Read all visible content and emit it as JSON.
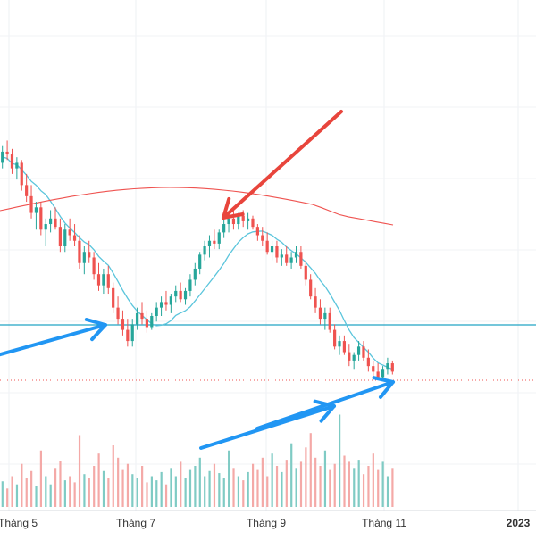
{
  "chart_data": {
    "type": "candlestick",
    "x_axis": {
      "tick_labels": [
        "Tháng 5",
        "Tháng 7",
        "Tháng 9",
        "Tháng 11",
        "2023"
      ]
    },
    "grid": true,
    "price_range": [
      0.0,
      1.0
    ],
    "volume_range": [
      0.0,
      1.0
    ],
    "colors": {
      "up": "#26a69a",
      "down": "#ef5350",
      "volume_up": "#7fcbc4",
      "volume_down": "#f4a9a7",
      "ma_short": "#5bc5dc",
      "ma_long": "#ef5350",
      "support_line": "#22a3c4",
      "last_price_line": "#ef5350",
      "annotation_red": "#e8453c",
      "annotation_blue": "#2196f3"
    },
    "series": [
      {
        "name": "price",
        "candles": [
          [
            0.8,
            0.86,
            0.78,
            0.84
          ],
          [
            0.84,
            0.88,
            0.81,
            0.83
          ],
          [
            0.83,
            0.85,
            0.76,
            0.78
          ],
          [
            0.78,
            0.82,
            0.74,
            0.8
          ],
          [
            0.8,
            0.81,
            0.7,
            0.72
          ],
          [
            0.72,
            0.76,
            0.66,
            0.68
          ],
          [
            0.68,
            0.72,
            0.6,
            0.62
          ],
          [
            0.62,
            0.66,
            0.56,
            0.64
          ],
          [
            0.64,
            0.66,
            0.54,
            0.56
          ],
          [
            0.56,
            0.6,
            0.5,
            0.58
          ],
          [
            0.58,
            0.63,
            0.55,
            0.6
          ],
          [
            0.6,
            0.64,
            0.56,
            0.57
          ],
          [
            0.57,
            0.6,
            0.48,
            0.5
          ],
          [
            0.5,
            0.58,
            0.48,
            0.56
          ],
          [
            0.56,
            0.6,
            0.52,
            0.54
          ],
          [
            0.54,
            0.58,
            0.5,
            0.52
          ],
          [
            0.52,
            0.54,
            0.42,
            0.44
          ],
          [
            0.44,
            0.5,
            0.4,
            0.48
          ],
          [
            0.48,
            0.52,
            0.44,
            0.46
          ],
          [
            0.46,
            0.48,
            0.38,
            0.4
          ],
          [
            0.4,
            0.44,
            0.34,
            0.36
          ],
          [
            0.36,
            0.42,
            0.33,
            0.4
          ],
          [
            0.4,
            0.43,
            0.33,
            0.35
          ],
          [
            0.35,
            0.37,
            0.26,
            0.28
          ],
          [
            0.28,
            0.32,
            0.22,
            0.24
          ],
          [
            0.24,
            0.27,
            0.18,
            0.2
          ],
          [
            0.2,
            0.24,
            0.14,
            0.16
          ],
          [
            0.16,
            0.24,
            0.14,
            0.22
          ],
          [
            0.22,
            0.28,
            0.2,
            0.26
          ],
          [
            0.26,
            0.3,
            0.22,
            0.24
          ],
          [
            0.24,
            0.27,
            0.19,
            0.21
          ],
          [
            0.21,
            0.26,
            0.2,
            0.25
          ],
          [
            0.25,
            0.3,
            0.23,
            0.28
          ],
          [
            0.28,
            0.32,
            0.25,
            0.3
          ],
          [
            0.3,
            0.34,
            0.27,
            0.29
          ],
          [
            0.29,
            0.33,
            0.26,
            0.32
          ],
          [
            0.32,
            0.36,
            0.3,
            0.34
          ],
          [
            0.34,
            0.37,
            0.3,
            0.31
          ],
          [
            0.31,
            0.35,
            0.29,
            0.34
          ],
          [
            0.34,
            0.4,
            0.32,
            0.38
          ],
          [
            0.38,
            0.44,
            0.36,
            0.42
          ],
          [
            0.42,
            0.48,
            0.4,
            0.47
          ],
          [
            0.47,
            0.52,
            0.45,
            0.5
          ],
          [
            0.5,
            0.54,
            0.46,
            0.52
          ],
          [
            0.52,
            0.56,
            0.49,
            0.51
          ],
          [
            0.51,
            0.56,
            0.49,
            0.55
          ],
          [
            0.55,
            0.6,
            0.53,
            0.58
          ],
          [
            0.58,
            0.62,
            0.55,
            0.6
          ],
          [
            0.6,
            0.63,
            0.56,
            0.58
          ],
          [
            0.58,
            0.62,
            0.56,
            0.61
          ],
          [
            0.61,
            0.63,
            0.57,
            0.59
          ],
          [
            0.59,
            0.62,
            0.56,
            0.6
          ],
          [
            0.6,
            0.61,
            0.56,
            0.57
          ],
          [
            0.57,
            0.58,
            0.52,
            0.54
          ],
          [
            0.54,
            0.57,
            0.5,
            0.52
          ],
          [
            0.52,
            0.55,
            0.47,
            0.48
          ],
          [
            0.48,
            0.52,
            0.45,
            0.5
          ],
          [
            0.5,
            0.52,
            0.44,
            0.46
          ],
          [
            0.46,
            0.49,
            0.43,
            0.47
          ],
          [
            0.47,
            0.5,
            0.43,
            0.44
          ],
          [
            0.44,
            0.48,
            0.42,
            0.46
          ],
          [
            0.46,
            0.5,
            0.44,
            0.48
          ],
          [
            0.48,
            0.5,
            0.42,
            0.43
          ],
          [
            0.43,
            0.45,
            0.36,
            0.38
          ],
          [
            0.38,
            0.4,
            0.31,
            0.32
          ],
          [
            0.32,
            0.35,
            0.26,
            0.28
          ],
          [
            0.28,
            0.31,
            0.22,
            0.24
          ],
          [
            0.24,
            0.28,
            0.2,
            0.26
          ],
          [
            0.26,
            0.28,
            0.19,
            0.2
          ],
          [
            0.2,
            0.22,
            0.13,
            0.14
          ],
          [
            0.14,
            0.18,
            0.11,
            0.16
          ],
          [
            0.16,
            0.18,
            0.11,
            0.12
          ],
          [
            0.12,
            0.15,
            0.07,
            0.09
          ],
          [
            0.09,
            0.12,
            0.06,
            0.11
          ],
          [
            0.11,
            0.16,
            0.09,
            0.14
          ],
          [
            0.14,
            0.16,
            0.09,
            0.1
          ],
          [
            0.1,
            0.13,
            0.05,
            0.07
          ],
          [
            0.07,
            0.09,
            0.03,
            0.05
          ],
          [
            0.05,
            0.08,
            0.02,
            0.03
          ],
          [
            0.03,
            0.07,
            0.02,
            0.06
          ],
          [
            0.06,
            0.1,
            0.04,
            0.08
          ],
          [
            0.08,
            0.09,
            0.04,
            0.05
          ]
        ]
      },
      {
        "name": "volume",
        "values": [
          0.25,
          0.18,
          0.3,
          0.22,
          0.42,
          0.28,
          0.35,
          0.2,
          0.55,
          0.3,
          0.22,
          0.38,
          0.45,
          0.26,
          0.3,
          0.24,
          0.7,
          0.32,
          0.28,
          0.4,
          0.52,
          0.35,
          0.28,
          0.6,
          0.48,
          0.36,
          0.42,
          0.32,
          0.28,
          0.4,
          0.24,
          0.3,
          0.26,
          0.34,
          0.22,
          0.38,
          0.3,
          0.44,
          0.28,
          0.36,
          0.4,
          0.48,
          0.3,
          0.35,
          0.42,
          0.33,
          0.28,
          0.55,
          0.38,
          0.3,
          0.26,
          0.34,
          0.42,
          0.36,
          0.48,
          0.3,
          0.52,
          0.4,
          0.34,
          0.46,
          0.62,
          0.38,
          0.44,
          0.58,
          0.72,
          0.48,
          0.4,
          0.55,
          0.36,
          0.42,
          0.9,
          0.5,
          0.44,
          0.38,
          0.46,
          0.32,
          0.4,
          0.52,
          0.36,
          0.44,
          0.3,
          0.38
        ]
      }
    ],
    "lines": [
      {
        "name": "ma_short",
        "style": "solid"
      },
      {
        "name": "ma_long",
        "style": "solid"
      },
      {
        "name": "support_line",
        "style": "solid",
        "orientation": "horizontal"
      },
      {
        "name": "last_price_line",
        "style": "dotted",
        "orientation": "horizontal"
      }
    ],
    "annotations": [
      {
        "type": "arrow",
        "color": "red",
        "direction": "down-left",
        "target": "peak"
      },
      {
        "type": "arrow",
        "color": "blue",
        "direction": "right",
        "target": "first-low"
      },
      {
        "type": "arrow",
        "color": "blue",
        "direction": "right",
        "target": "second-low"
      },
      {
        "type": "arrow",
        "color": "blue",
        "direction": "up-right",
        "target": "volume-trend"
      }
    ]
  }
}
